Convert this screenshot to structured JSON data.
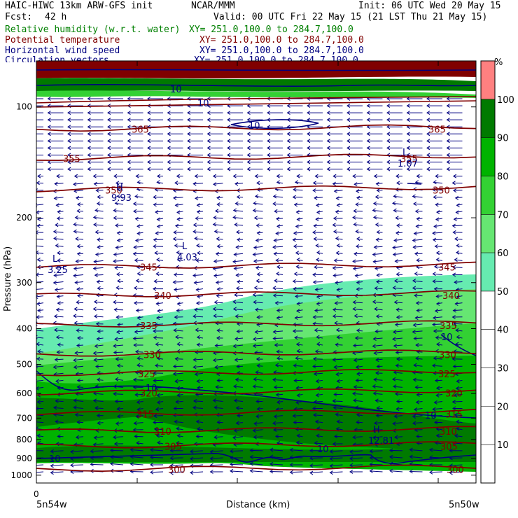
{
  "header": {
    "model": "HAIC-HIWC 13km ARW-GFS init",
    "center": "NCAR/MMM",
    "init": "Init: 06 UTC Wed 20 May 15",
    "fcst_label": "Fcst:",
    "fcst_value": "42 h",
    "valid": "Valid: 00 UTC Fri 22 May 15 (21 LST Thu 21 May 15)",
    "fields": [
      {
        "name": "Relative humidity (w.r.t. water)",
        "xy": "XY= 251.0,100.0 to 284.7,100.0",
        "color": "#008000"
      },
      {
        "name": "Potential temperature",
        "xy": "XY= 251.0,100.0 to 284.7,100.0",
        "color": "#800000"
      },
      {
        "name": "Horizontal wind speed",
        "xy": "XY= 251.0,100.0 to 284.7,100.0",
        "color": "#000080"
      },
      {
        "name": "Circulation vectors",
        "xy": "XY= 251.0,100.0 to 284.7,100.0",
        "color": "#000080"
      }
    ]
  },
  "chart_data": {
    "type": "cross-section",
    "xlabel": "Distance (km)",
    "ylabel": "Pressure (hPa)",
    "x_tick_labels": [
      "0"
    ],
    "x_endpoints": [
      "5n54w",
      "5n50w"
    ],
    "y_ticks": [
      100,
      200,
      300,
      400,
      500,
      600,
      700,
      800,
      900,
      1000
    ],
    "y_scale": "log",
    "ylim": [
      1050,
      75
    ],
    "colorbar": {
      "unit": "%",
      "ticks": [
        10,
        20,
        30,
        40,
        50,
        60,
        70,
        80,
        90,
        100
      ],
      "bands": [
        {
          "from": 50,
          "to": 60,
          "color": "#66ebb0"
        },
        {
          "from": 60,
          "to": 70,
          "color": "#66e672"
        },
        {
          "from": 70,
          "to": 80,
          "color": "#33d133"
        },
        {
          "from": 80,
          "to": 90,
          "color": "#00b300"
        },
        {
          "from": 90,
          "to": 100,
          "color": "#007a00"
        },
        {
          "from": 100,
          "to": 110,
          "color": "#ff8080"
        }
      ]
    },
    "theta_contours": [
      {
        "label": "365",
        "p": 115
      },
      {
        "label": "355",
        "p": 138
      },
      {
        "label": "350",
        "p": 168
      },
      {
        "label": "345",
        "p": 272
      },
      {
        "label": "340",
        "p": 325
      },
      {
        "label": "335",
        "p": 392
      },
      {
        "label": "330",
        "p": 470
      },
      {
        "label": "325",
        "p": 530
      },
      {
        "label": "320",
        "p": 598
      },
      {
        "label": "315",
        "p": 682
      },
      {
        "label": "310",
        "p": 760
      },
      {
        "label": "305",
        "p": 835
      },
      {
        "label": "300",
        "p": 965
      }
    ],
    "wind_labels": [
      "10",
      "10",
      "10",
      "10",
      "10",
      "10",
      "10",
      "10"
    ],
    "extrema": [
      {
        "type": "H",
        "value": "9.93"
      },
      {
        "type": "L",
        "value": "4.03"
      },
      {
        "type": "L",
        "value": "3.25"
      },
      {
        "type": "L",
        "value": "1.07"
      },
      {
        "type": "H",
        "value": "12.81"
      }
    ]
  }
}
